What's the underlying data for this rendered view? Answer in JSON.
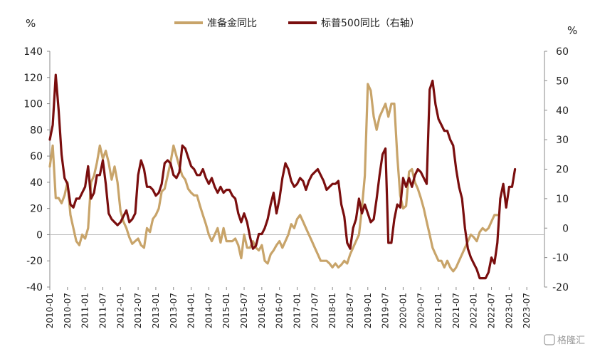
{
  "chart_data": {
    "type": "line",
    "left_unit": "%",
    "right_unit": "%",
    "watermark": "格隆汇",
    "y_left": {
      "min": -40,
      "max": 140,
      "ticks": [
        140,
        120,
        100,
        80,
        60,
        40,
        20,
        0,
        -20,
        -40
      ]
    },
    "y_right": {
      "min": -20,
      "max": 60,
      "ticks": [
        60,
        50,
        40,
        30,
        20,
        10,
        0,
        -10,
        -20
      ]
    },
    "x_ticks": [
      "2010-01",
      "2010-07",
      "2011-01",
      "2011-07",
      "2012-01",
      "2012-07",
      "2013-01",
      "2013-07",
      "2014-01",
      "2014-07",
      "2015-01",
      "2015-07",
      "2016-01",
      "2016-07",
      "2017-01",
      "2017-07",
      "2018-01",
      "2018-07",
      "2019-01",
      "2019-07",
      "2020-01",
      "2020-07",
      "2021-01",
      "2021-07",
      "2022-01",
      "2022-07",
      "2023-01",
      "2023-07"
    ],
    "x_tick_months": [
      0,
      6,
      12,
      18,
      24,
      30,
      36,
      42,
      48,
      54,
      60,
      66,
      72,
      78,
      84,
      90,
      96,
      102,
      108,
      114,
      120,
      126,
      132,
      138,
      144,
      150,
      156,
      162
    ],
    "x_range": [
      0,
      168
    ],
    "series": [
      {
        "name": "准备金同比",
        "axis": "left",
        "color": "#C8A46A",
        "points": [
          [
            0,
            52
          ],
          [
            1,
            68
          ],
          [
            2,
            28
          ],
          [
            3,
            28
          ],
          [
            4,
            24
          ],
          [
            5,
            30
          ],
          [
            6,
            40
          ],
          [
            7,
            15
          ],
          [
            8,
            5
          ],
          [
            9,
            -5
          ],
          [
            10,
            -8
          ],
          [
            11,
            0
          ],
          [
            12,
            -3
          ],
          [
            13,
            5
          ],
          [
            14,
            40
          ],
          [
            15,
            45
          ],
          [
            16,
            55
          ],
          [
            17,
            68
          ],
          [
            18,
            58
          ],
          [
            19,
            64
          ],
          [
            20,
            55
          ],
          [
            21,
            42
          ],
          [
            22,
            52
          ],
          [
            23,
            40
          ],
          [
            24,
            18
          ],
          [
            25,
            10
          ],
          [
            26,
            5
          ],
          [
            27,
            -2
          ],
          [
            28,
            -7
          ],
          [
            29,
            -5
          ],
          [
            30,
            -3
          ],
          [
            31,
            -8
          ],
          [
            32,
            -10
          ],
          [
            33,
            5
          ],
          [
            34,
            2
          ],
          [
            35,
            12
          ],
          [
            36,
            15
          ],
          [
            37,
            20
          ],
          [
            38,
            33
          ],
          [
            39,
            35
          ],
          [
            40,
            45
          ],
          [
            41,
            55
          ],
          [
            42,
            68
          ],
          [
            43,
            60
          ],
          [
            44,
            52
          ],
          [
            45,
            45
          ],
          [
            46,
            42
          ],
          [
            47,
            35
          ],
          [
            48,
            32
          ],
          [
            49,
            30
          ],
          [
            50,
            30
          ],
          [
            51,
            22
          ],
          [
            52,
            15
          ],
          [
            53,
            8
          ],
          [
            54,
            0
          ],
          [
            55,
            -5
          ],
          [
            56,
            0
          ],
          [
            57,
            5
          ],
          [
            58,
            -6
          ],
          [
            59,
            5
          ],
          [
            60,
            -5
          ],
          [
            61,
            -5
          ],
          [
            62,
            -5
          ],
          [
            63,
            -3
          ],
          [
            64,
            -8
          ],
          [
            65,
            -18
          ],
          [
            66,
            0
          ],
          [
            67,
            -10
          ],
          [
            68,
            -10
          ],
          [
            69,
            -5
          ],
          [
            70,
            -10
          ],
          [
            71,
            -12
          ],
          [
            72,
            -8
          ],
          [
            73,
            -20
          ],
          [
            74,
            -22
          ],
          [
            75,
            -15
          ],
          [
            76,
            -12
          ],
          [
            77,
            -8
          ],
          [
            78,
            -5
          ],
          [
            79,
            -10
          ],
          [
            80,
            -5
          ],
          [
            81,
            0
          ],
          [
            82,
            8
          ],
          [
            83,
            5
          ],
          [
            84,
            12
          ],
          [
            85,
            15
          ],
          [
            86,
            10
          ],
          [
            87,
            5
          ],
          [
            88,
            0
          ],
          [
            89,
            -5
          ],
          [
            90,
            -10
          ],
          [
            91,
            -15
          ],
          [
            92,
            -20
          ],
          [
            93,
            -20
          ],
          [
            94,
            -20
          ],
          [
            95,
            -22
          ],
          [
            96,
            -25
          ],
          [
            97,
            -22
          ],
          [
            98,
            -25
          ],
          [
            99,
            -23
          ],
          [
            100,
            -20
          ],
          [
            101,
            -22
          ],
          [
            102,
            -15
          ],
          [
            103,
            -10
          ],
          [
            104,
            -5
          ],
          [
            105,
            0
          ],
          [
            106,
            20
          ],
          [
            107,
            45
          ],
          [
            108,
            115
          ],
          [
            109,
            110
          ],
          [
            110,
            90
          ],
          [
            111,
            80
          ],
          [
            112,
            90
          ],
          [
            113,
            95
          ],
          [
            114,
            100
          ],
          [
            115,
            90
          ],
          [
            116,
            100
          ],
          [
            117,
            100
          ],
          [
            118,
            60
          ],
          [
            119,
            30
          ],
          [
            120,
            20
          ],
          [
            121,
            22
          ],
          [
            122,
            48
          ],
          [
            123,
            50
          ],
          [
            124,
            40
          ],
          [
            125,
            35
          ],
          [
            126,
            28
          ],
          [
            127,
            20
          ],
          [
            128,
            10
          ],
          [
            129,
            0
          ],
          [
            130,
            -10
          ],
          [
            131,
            -15
          ],
          [
            132,
            -20
          ],
          [
            133,
            -20
          ],
          [
            134,
            -25
          ],
          [
            135,
            -20
          ],
          [
            136,
            -25
          ],
          [
            137,
            -28
          ],
          [
            138,
            -25
          ],
          [
            139,
            -20
          ],
          [
            140,
            -15
          ],
          [
            141,
            -10
          ],
          [
            142,
            -5
          ],
          [
            143,
            0
          ],
          [
            144,
            -2
          ],
          [
            145,
            -5
          ],
          [
            146,
            2
          ],
          [
            147,
            5
          ],
          [
            148,
            3
          ],
          [
            149,
            5
          ],
          [
            150,
            10
          ],
          [
            151,
            15
          ],
          [
            152,
            15
          ]
        ]
      },
      {
        "name": "标普500同比（右轴）",
        "axis": "right",
        "color": "#7A0E0E",
        "points": [
          [
            0,
            30
          ],
          [
            1,
            35
          ],
          [
            2,
            52
          ],
          [
            3,
            40
          ],
          [
            4,
            25
          ],
          [
            5,
            17
          ],
          [
            6,
            15
          ],
          [
            7,
            8
          ],
          [
            8,
            7
          ],
          [
            9,
            10
          ],
          [
            10,
            10
          ],
          [
            11,
            12
          ],
          [
            12,
            14
          ],
          [
            13,
            21
          ],
          [
            14,
            10
          ],
          [
            15,
            12
          ],
          [
            16,
            18
          ],
          [
            17,
            18
          ],
          [
            18,
            23
          ],
          [
            19,
            15
          ],
          [
            20,
            5
          ],
          [
            21,
            3
          ],
          [
            22,
            2
          ],
          [
            23,
            1
          ],
          [
            24,
            2
          ],
          [
            25,
            4
          ],
          [
            26,
            6
          ],
          [
            27,
            2
          ],
          [
            28,
            3
          ],
          [
            29,
            5
          ],
          [
            30,
            18
          ],
          [
            31,
            23
          ],
          [
            32,
            20
          ],
          [
            33,
            14
          ],
          [
            34,
            14
          ],
          [
            35,
            13
          ],
          [
            36,
            11
          ],
          [
            37,
            12
          ],
          [
            38,
            15
          ],
          [
            39,
            22
          ],
          [
            40,
            23
          ],
          [
            41,
            22
          ],
          [
            42,
            18
          ],
          [
            43,
            17
          ],
          [
            44,
            19
          ],
          [
            45,
            28
          ],
          [
            46,
            27
          ],
          [
            47,
            24
          ],
          [
            48,
            21
          ],
          [
            49,
            20
          ],
          [
            50,
            18
          ],
          [
            51,
            18
          ],
          [
            52,
            20
          ],
          [
            53,
            17
          ],
          [
            54,
            15
          ],
          [
            55,
            17
          ],
          [
            56,
            14
          ],
          [
            57,
            12
          ],
          [
            58,
            14
          ],
          [
            59,
            12
          ],
          [
            60,
            13
          ],
          [
            61,
            13
          ],
          [
            62,
            11
          ],
          [
            63,
            10
          ],
          [
            64,
            5
          ],
          [
            65,
            2
          ],
          [
            66,
            5
          ],
          [
            67,
            2
          ],
          [
            68,
            -3
          ],
          [
            69,
            -7
          ],
          [
            70,
            -6
          ],
          [
            71,
            -2
          ],
          [
            72,
            -2
          ],
          [
            73,
            0
          ],
          [
            74,
            3
          ],
          [
            75,
            8
          ],
          [
            76,
            12
          ],
          [
            77,
            5
          ],
          [
            78,
            10
          ],
          [
            79,
            17
          ],
          [
            80,
            22
          ],
          [
            81,
            20
          ],
          [
            82,
            16
          ],
          [
            83,
            14
          ],
          [
            84,
            15
          ],
          [
            85,
            17
          ],
          [
            86,
            16
          ],
          [
            87,
            13
          ],
          [
            88,
            16
          ],
          [
            89,
            18
          ],
          [
            90,
            19
          ],
          [
            91,
            20
          ],
          [
            92,
            18
          ],
          [
            93,
            16
          ],
          [
            94,
            13
          ],
          [
            95,
            14
          ],
          [
            96,
            15
          ],
          [
            97,
            15
          ],
          [
            98,
            16
          ],
          [
            99,
            8
          ],
          [
            100,
            4
          ],
          [
            101,
            -5
          ],
          [
            102,
            -7
          ],
          [
            103,
            0
          ],
          [
            104,
            3
          ],
          [
            105,
            10
          ],
          [
            106,
            5
          ],
          [
            107,
            8
          ],
          [
            108,
            5
          ],
          [
            109,
            2
          ],
          [
            110,
            3
          ],
          [
            111,
            10
          ],
          [
            112,
            18
          ],
          [
            113,
            25
          ],
          [
            114,
            27
          ],
          [
            115,
            -5
          ],
          [
            116,
            -5
          ],
          [
            117,
            3
          ],
          [
            118,
            8
          ],
          [
            119,
            7
          ],
          [
            120,
            17
          ],
          [
            121,
            14
          ],
          [
            122,
            17
          ],
          [
            123,
            14
          ],
          [
            124,
            18
          ],
          [
            125,
            20
          ],
          [
            126,
            19
          ],
          [
            127,
            17
          ],
          [
            128,
            15
          ],
          [
            129,
            47
          ],
          [
            130,
            50
          ],
          [
            131,
            42
          ],
          [
            132,
            37
          ],
          [
            133,
            35
          ],
          [
            134,
            33
          ],
          [
            135,
            33
          ],
          [
            136,
            30
          ],
          [
            137,
            28
          ],
          [
            138,
            20
          ],
          [
            139,
            14
          ],
          [
            140,
            10
          ],
          [
            141,
            0
          ],
          [
            142,
            -7
          ],
          [
            143,
            -10
          ],
          [
            144,
            -12
          ],
          [
            145,
            -14
          ],
          [
            146,
            -17
          ],
          [
            147,
            -17
          ],
          [
            148,
            -17
          ],
          [
            149,
            -15
          ],
          [
            150,
            -10
          ],
          [
            151,
            -12
          ],
          [
            152,
            -5
          ],
          [
            153,
            10
          ],
          [
            154,
            15
          ],
          [
            155,
            7
          ],
          [
            156,
            14
          ],
          [
            157,
            14
          ],
          [
            158,
            20
          ]
        ]
      }
    ]
  }
}
